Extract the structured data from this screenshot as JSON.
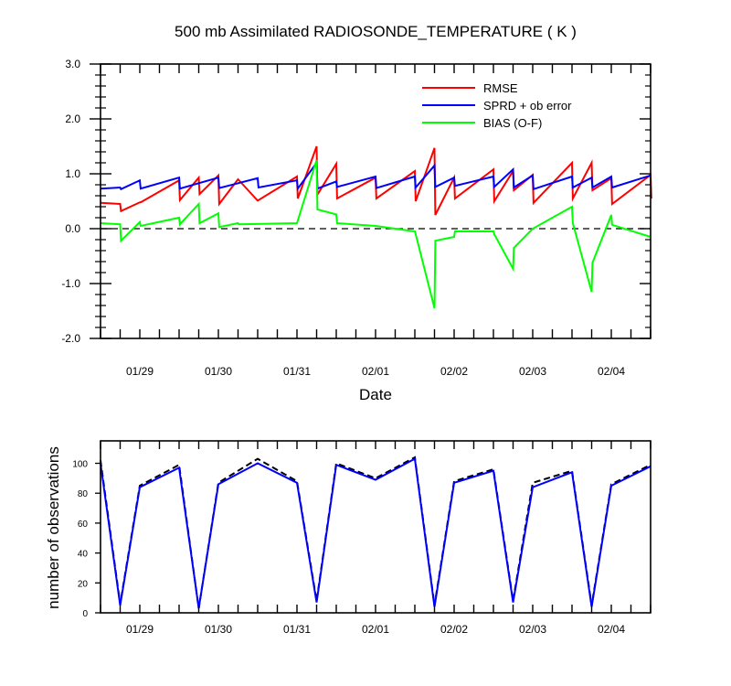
{
  "chart_data": [
    {
      "type": "line",
      "title": "500 mb Assimilated RADIOSONDE_TEMPERATURE ( K )",
      "xlabel": "Date",
      "ylabel": "",
      "xlim": [
        0,
        7.0
      ],
      "ylim": [
        -2.0,
        3.0
      ],
      "yticks": [
        -2.0,
        -1.0,
        0.0,
        1.0,
        2.0,
        3.0
      ],
      "ytick_labels": [
        "-2.0",
        "-1.0",
        "0.0",
        "1.0",
        "2.0",
        "3.0"
      ],
      "xticks": [
        0.5,
        1.5,
        2.5,
        3.5,
        4.5,
        5.5,
        6.5
      ],
      "xtick_labels": [
        "01/29",
        "01/30",
        "01/31",
        "02/01",
        "02/02",
        "02/03",
        "02/04"
      ],
      "minor_xticks": [
        0.0,
        0.25,
        0.5,
        0.75,
        1.0,
        1.25,
        1.5,
        1.75,
        2.0,
        2.25,
        2.5,
        2.75,
        3.0,
        3.25,
        3.5,
        3.75,
        4.0,
        4.25,
        4.5,
        4.75,
        5.0,
        5.25,
        5.5,
        5.75,
        6.0,
        6.25,
        6.5,
        6.75,
        7.0
      ],
      "reference_line": {
        "y": 0.0,
        "style": "dashed"
      },
      "legend_placement": "top-right",
      "grid": false,
      "series": [
        {
          "name": "RMSE",
          "color": "#ff0000",
          "points": [
            [
              0.0,
              0.47
            ],
            [
              0.25,
              0.45
            ],
            [
              0.26,
              0.32
            ],
            [
              0.5,
              0.48
            ],
            [
              0.51,
              0.48
            ],
            [
              1.0,
              0.88
            ],
            [
              1.01,
              0.52
            ],
            [
              1.25,
              0.93
            ],
            [
              1.26,
              0.63
            ],
            [
              1.5,
              0.97
            ],
            [
              1.51,
              0.45
            ],
            [
              1.75,
              0.9
            ],
            [
              2.0,
              0.51
            ],
            [
              2.5,
              0.95
            ],
            [
              2.51,
              0.55
            ],
            [
              2.75,
              1.5
            ],
            [
              2.76,
              0.62
            ],
            [
              3.0,
              1.18
            ],
            [
              3.01,
              0.55
            ],
            [
              3.5,
              0.93
            ],
            [
              3.51,
              0.55
            ],
            [
              4.0,
              1.05
            ],
            [
              4.01,
              0.5
            ],
            [
              4.25,
              1.47
            ],
            [
              4.26,
              0.25
            ],
            [
              4.5,
              0.93
            ],
            [
              4.51,
              0.55
            ],
            [
              5.0,
              1.08
            ],
            [
              5.01,
              0.5
            ],
            [
              5.25,
              1.05
            ],
            [
              5.26,
              0.7
            ],
            [
              5.5,
              0.98
            ],
            [
              5.51,
              0.47
            ],
            [
              6.0,
              1.2
            ],
            [
              6.01,
              0.55
            ],
            [
              6.25,
              1.2
            ],
            [
              6.26,
              0.7
            ],
            [
              6.5,
              0.92
            ],
            [
              6.51,
              0.45
            ],
            [
              7.0,
              0.98
            ],
            [
              7.01,
              0.55
            ]
          ]
        },
        {
          "name": "SPRD + ob error",
          "color": "#0000ff",
          "points": [
            [
              0.0,
              0.73
            ],
            [
              0.25,
              0.75
            ],
            [
              0.26,
              0.72
            ],
            [
              0.5,
              0.88
            ],
            [
              0.51,
              0.73
            ],
            [
              1.0,
              0.93
            ],
            [
              1.01,
              0.73
            ],
            [
              1.5,
              0.93
            ],
            [
              1.51,
              0.74
            ],
            [
              2.0,
              0.92
            ],
            [
              2.01,
              0.75
            ],
            [
              2.5,
              0.88
            ],
            [
              2.51,
              0.73
            ],
            [
              2.75,
              1.2
            ],
            [
              2.76,
              0.73
            ],
            [
              3.0,
              0.86
            ],
            [
              3.01,
              0.76
            ],
            [
              3.5,
              0.95
            ],
            [
              3.51,
              0.74
            ],
            [
              4.0,
              0.95
            ],
            [
              4.01,
              0.75
            ],
            [
              4.25,
              1.15
            ],
            [
              4.26,
              0.76
            ],
            [
              4.5,
              0.93
            ],
            [
              4.51,
              0.78
            ],
            [
              5.0,
              0.95
            ],
            [
              5.01,
              0.76
            ],
            [
              5.25,
              1.08
            ],
            [
              5.26,
              0.75
            ],
            [
              5.5,
              0.97
            ],
            [
              5.51,
              0.72
            ],
            [
              6.0,
              0.95
            ],
            [
              6.01,
              0.75
            ],
            [
              6.25,
              0.93
            ],
            [
              6.26,
              0.75
            ],
            [
              6.5,
              0.95
            ],
            [
              6.51,
              0.75
            ],
            [
              7.0,
              0.97
            ]
          ]
        },
        {
          "name": "BIAS (O-F)",
          "color": "#00ff00",
          "points": [
            [
              0.0,
              0.1
            ],
            [
              0.25,
              0.08
            ],
            [
              0.26,
              -0.22
            ],
            [
              0.5,
              0.12
            ],
            [
              0.51,
              0.05
            ],
            [
              1.0,
              0.2
            ],
            [
              1.01,
              0.08
            ],
            [
              1.25,
              0.45
            ],
            [
              1.26,
              0.1
            ],
            [
              1.5,
              0.28
            ],
            [
              1.51,
              0.03
            ],
            [
              1.75,
              0.1
            ],
            [
              1.76,
              0.08
            ],
            [
              2.5,
              0.1
            ],
            [
              2.75,
              1.25
            ],
            [
              2.76,
              0.35
            ],
            [
              3.0,
              0.26
            ],
            [
              3.01,
              0.1
            ],
            [
              3.5,
              0.05
            ],
            [
              4.0,
              -0.05
            ],
            [
              4.01,
              -0.1
            ],
            [
              4.25,
              -1.45
            ],
            [
              4.26,
              -0.22
            ],
            [
              4.5,
              -0.15
            ],
            [
              4.51,
              -0.05
            ],
            [
              5.0,
              -0.05
            ],
            [
              5.01,
              -0.1
            ],
            [
              5.25,
              -0.73
            ],
            [
              5.26,
              -0.35
            ],
            [
              5.5,
              0.0
            ],
            [
              6.0,
              0.4
            ],
            [
              6.01,
              0.1
            ],
            [
              6.25,
              -1.15
            ],
            [
              6.26,
              -0.62
            ],
            [
              6.5,
              0.25
            ],
            [
              6.51,
              0.07
            ],
            [
              7.0,
              -0.15
            ]
          ]
        }
      ]
    },
    {
      "type": "line",
      "title": "",
      "xlabel": "",
      "ylabel": "number of observations",
      "xlim": [
        0,
        7.0
      ],
      "ylim": [
        0,
        115
      ],
      "yticks": [
        0,
        20,
        40,
        60,
        80,
        100
      ],
      "ytick_labels": [
        "0",
        "20",
        "40",
        "60",
        "80",
        "100"
      ],
      "xticks": [
        0.5,
        1.5,
        2.5,
        3.5,
        4.5,
        5.5,
        6.5
      ],
      "xtick_labels": [
        "01/29",
        "01/30",
        "01/31",
        "02/01",
        "02/02",
        "02/03",
        "02/04"
      ],
      "minor_xticks": [
        0.0,
        0.25,
        0.5,
        0.75,
        1.0,
        1.25,
        1.5,
        1.75,
        2.0,
        2.25,
        2.5,
        2.75,
        3.0,
        3.25,
        3.5,
        3.75,
        4.0,
        4.25,
        4.5,
        4.75,
        5.0,
        5.25,
        5.5,
        5.75,
        6.0,
        6.25,
        6.5,
        6.75,
        7.0
      ],
      "grid": false,
      "series": [
        {
          "color": "#000000",
          "style": "dashed",
          "points": [
            [
              0.0,
              102
            ],
            [
              0.25,
              6
            ],
            [
              0.5,
              85
            ],
            [
              1.0,
              99
            ],
            [
              1.25,
              3
            ],
            [
              1.5,
              87
            ],
            [
              2.0,
              103
            ],
            [
              2.5,
              88
            ],
            [
              2.75,
              8
            ],
            [
              3.0,
              100
            ],
            [
              3.5,
              90
            ],
            [
              4.0,
              104
            ],
            [
              4.25,
              5
            ],
            [
              4.5,
              88
            ],
            [
              5.0,
              96
            ],
            [
              5.25,
              8
            ],
            [
              5.5,
              87
            ],
            [
              6.0,
              95
            ],
            [
              6.25,
              5
            ],
            [
              6.5,
              86
            ],
            [
              7.0,
              99
            ]
          ]
        },
        {
          "color": "#0000ff",
          "style": "solid",
          "points": [
            [
              0.0,
              100
            ],
            [
              0.25,
              5
            ],
            [
              0.5,
              84
            ],
            [
              1.0,
              97
            ],
            [
              1.25,
              3
            ],
            [
              1.5,
              86
            ],
            [
              2.0,
              100
            ],
            [
              2.5,
              87
            ],
            [
              2.75,
              7
            ],
            [
              3.0,
              99
            ],
            [
              3.5,
              89
            ],
            [
              4.0,
              103
            ],
            [
              4.25,
              4
            ],
            [
              4.5,
              87
            ],
            [
              5.0,
              95
            ],
            [
              5.25,
              7
            ],
            [
              5.5,
              84
            ],
            [
              6.0,
              94
            ],
            [
              6.25,
              4
            ],
            [
              6.5,
              85
            ],
            [
              7.0,
              98
            ]
          ]
        }
      ]
    }
  ]
}
